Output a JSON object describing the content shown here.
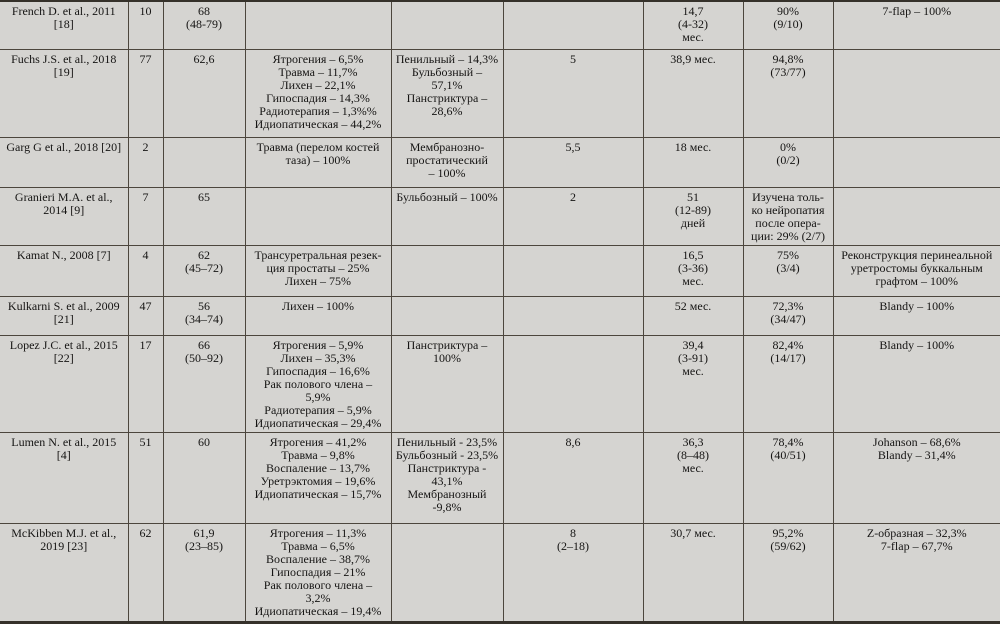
{
  "table": {
    "background_color": "#d5d4d1",
    "grid_line_color": "#4c463d",
    "text_color": "#151413",
    "rows": [
      {
        "cells": [
          "French D. et al., 2011\n[18]",
          "10",
          "68\n(48-79)",
          "",
          "",
          "",
          "14,7\n(4-32)\nмес.",
          "90%\n(9/10)",
          "7-flap – 100%"
        ]
      },
      {
        "cells": [
          "Fuchs J.S. et al., 2018\n[19]",
          "77",
          "62,6",
          "Ятрогения – 6,5%\nТравма – 11,7%\nЛихен – 22,1%\nГипоспадия – 14,3%\nРадиотерапия – 1,3%%\nИдиопатическая – 44,2%",
          "Пенильный – 14,3%\nБульбозный –\n57,1%\nПанстриктура –\n28,6%",
          "5",
          "38,9 мес.",
          "94,8%\n(73/77)",
          ""
        ]
      },
      {
        "cells": [
          "Garg G et al., 2018 [20]",
          "2",
          "",
          "Травма (перелом костей\nтаза) – 100%",
          "Мембранозно-\nпростатический\n– 100%",
          "5,5",
          "18 мес.",
          "0%\n(0/2)",
          ""
        ]
      },
      {
        "cells": [
          "Granieri M.A. et al.,\n2014 [9]",
          "7",
          "65",
          "",
          "Бульбозный – 100%",
          "2",
          "51\n(12-89)\nдней",
          "Изучена толь-\nко нейропатия\nпосле опера-\nции: 29% (2/7)",
          ""
        ]
      },
      {
        "cells": [
          "Kamat N., 2008 [7]",
          "4",
          "62\n(45–72)",
          "Трансуретральная резек-\nция простаты – 25%\nЛихен – 75%",
          "",
          "",
          "16,5\n(3-36)\nмес.",
          "75%\n(3/4)",
          "Реконструкция перинеальной\nуретростомы буккальным\nграфтом – 100%"
        ]
      },
      {
        "cells": [
          "Kulkarni S. et al., 2009\n[21]",
          "47",
          "56\n(34–74)",
          "Лихен – 100%",
          "",
          "",
          "52 мес.",
          "72,3%\n(34/47)",
          "Blandy – 100%"
        ]
      },
      {
        "cells": [
          "Lopez J.C. et al., 2015\n[22]",
          "17",
          "66\n(50–92)",
          "Ятрогения – 5,9%\nЛихен – 35,3%\nГипоспадия – 16,6%\nРак полового члена –\n5,9%\nРадиотерапия – 5,9%\nИдиопатическая – 29,4%",
          "Панстриктура –\n100%",
          "",
          "39,4\n(3-91)\nмес.",
          "82,4%\n(14/17)",
          "Blandy – 100%"
        ]
      },
      {
        "cells": [
          "Lumen N. et al., 2015\n[4]",
          "51",
          "60",
          "Ятрогения – 41,2%\nТравма – 9,8%\nВоспаление – 13,7%\nУретрэктомия – 19,6%\nИдиопатическая – 15,7%",
          "Пенильный - 23,5%\nБульбозный - 23,5%\nПанстриктура -\n43,1%\nМембранозный\n-9,8%",
          "8,6",
          "36,3\n(8–48)\nмес.",
          "78,4%\n(40/51)",
          "Johanson – 68,6%\nBlandy – 31,4%"
        ]
      },
      {
        "cells": [
          "McKibben M.J. et al.,\n2019 [23]",
          "62",
          "61,9\n(23–85)",
          "Ятрогения – 11,3%\nТравма – 6,5%\nВоспаление – 38,7%\nГипоспадия – 21%\nРак полового члена –\n3,2%\nИдиопатическая – 19,4%",
          "",
          "8\n(2–18)",
          "30,7 мес.",
          "95,2%\n(59/62)",
          "Z-образная – 32,3%\n7-flap – 67,7%"
        ]
      }
    ]
  }
}
